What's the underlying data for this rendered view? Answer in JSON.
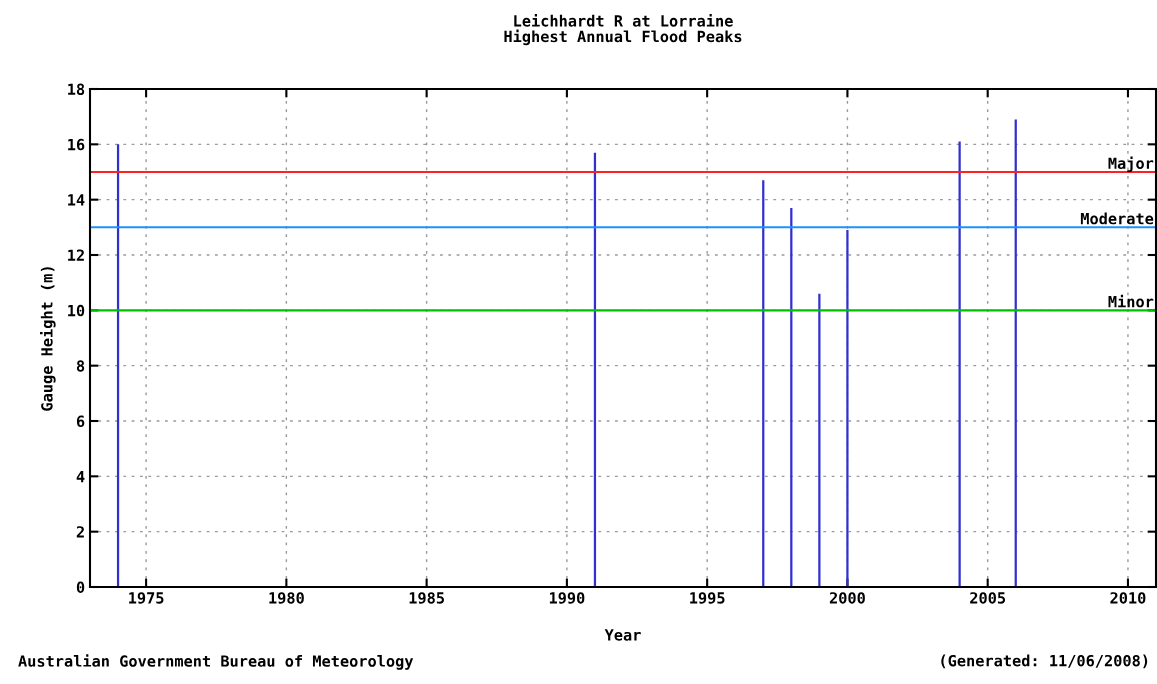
{
  "chart_data": {
    "type": "bar",
    "title": "Leichhardt R at Lorraine\nHighest Annual Flood Peaks",
    "xlabel": "Year",
    "ylabel": "Gauge Height (m)",
    "x": [
      1974,
      1991,
      1997,
      1998,
      1999,
      2000,
      2004,
      2006
    ],
    "values": [
      16.0,
      15.7,
      14.7,
      13.7,
      10.6,
      12.9,
      16.1,
      16.9
    ],
    "color": "#3030d0",
    "xlim": [
      1973,
      2011
    ],
    "xticks": [
      1975,
      1980,
      1985,
      1990,
      1995,
      2000,
      2005,
      2010
    ],
    "ylim": [
      0,
      18
    ],
    "yticks": [
      0,
      2,
      4,
      6,
      8,
      10,
      12,
      14,
      16,
      18
    ],
    "grid": true,
    "ref_lines": [
      {
        "axis": "y",
        "value": 15,
        "label": "Major",
        "color": "#ff2020"
      },
      {
        "axis": "y",
        "value": 13,
        "label": "Moderate",
        "color": "#1e90ff"
      },
      {
        "axis": "y",
        "value": 10,
        "label": "Minor",
        "color": "#00c000"
      }
    ],
    "annotations": [
      "Australian Government Bureau of Meteorology",
      "(Generated: 11/06/2008)"
    ]
  }
}
